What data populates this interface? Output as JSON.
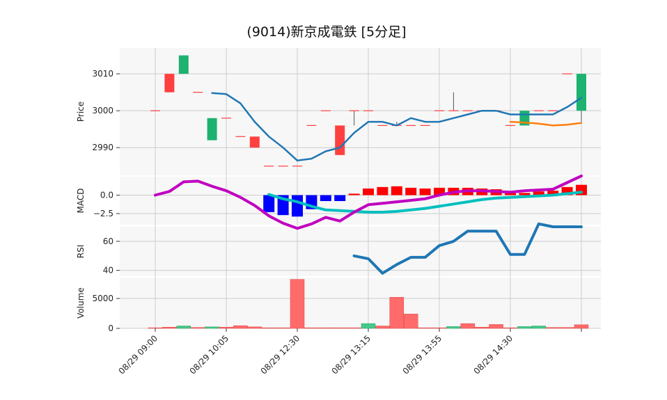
{
  "chart_data": {
    "type": "candlestick",
    "title": "(9014)新京成電鉄  [5分足]",
    "colors": {
      "up": "#1db270",
      "down": "#ff4040",
      "ma_short": "#1f77b4",
      "ma_long": "#ff7f0e",
      "macd_line": "#c000c0",
      "signal_line": "#00bfbf",
      "hist_pos": "#ff0000",
      "hist_neg": "#0000ff",
      "rsi": "#1f77b4",
      "vol_up": "#44c98a",
      "vol_down": "#ff6b6b",
      "panel_bg": "#f7f7f7",
      "grid": "#cccccc"
    },
    "x_ticks": [
      {
        "index": 0,
        "label": "08/29 09:00"
      },
      {
        "index": 5,
        "label": "08/29 10:05"
      },
      {
        "index": 10,
        "label": "08/29 12:30"
      },
      {
        "index": 15,
        "label": "08/29 13:15"
      },
      {
        "index": 20,
        "label": "08/29 13:55"
      },
      {
        "index": 25,
        "label": "08/29 14:30"
      },
      {
        "index": 30,
        "label": ""
      }
    ],
    "price": {
      "ylabel": "Price",
      "ylim": [
        2982.5,
        3017
      ],
      "yticks": [
        2990,
        3000,
        3010
      ],
      "candles": [
        {
          "o": 3000,
          "h": 3000,
          "l": 3000,
          "c": 3000
        },
        {
          "o": 3010,
          "h": 3010,
          "l": 3005,
          "c": 3005
        },
        {
          "o": 3010,
          "h": 3015,
          "l": 3010,
          "c": 3015
        },
        {
          "o": 3005,
          "h": 3005,
          "l": 3005,
          "c": 3005
        },
        {
          "o": 2992,
          "h": 2998,
          "l": 2992,
          "c": 2998
        },
        {
          "o": 2998,
          "h": 2998,
          "l": 2998,
          "c": 2998
        },
        {
          "o": 2993,
          "h": 2993,
          "l": 2993,
          "c": 2993
        },
        {
          "o": 2993,
          "h": 2993,
          "l": 2990,
          "c": 2990
        },
        {
          "o": 2985,
          "h": 2985,
          "l": 2985,
          "c": 2985
        },
        {
          "o": 2985,
          "h": 2985,
          "l": 2985,
          "c": 2985
        },
        {
          "o": 2985,
          "h": 2985,
          "l": 2985,
          "c": 2985
        },
        {
          "o": 2996,
          "h": 2996,
          "l": 2996,
          "c": 2996
        },
        {
          "o": 3000,
          "h": 3000,
          "l": 3000,
          "c": 3000
        },
        {
          "o": 2996,
          "h": 2996,
          "l": 2988,
          "c": 2988
        },
        {
          "o": 3000,
          "h": 3000,
          "l": 2996,
          "c": 3000
        },
        {
          "o": 3000,
          "h": 3000,
          "l": 3000,
          "c": 3000
        },
        {
          "o": 2996,
          "h": 2996,
          "l": 2996,
          "c": 2996
        },
        {
          "o": 2996,
          "h": 2997,
          "l": 2996,
          "c": 2996
        },
        {
          "o": 2996,
          "h": 2996,
          "l": 2996,
          "c": 2996
        },
        {
          "o": 2996,
          "h": 2996,
          "l": 2996,
          "c": 2996
        },
        {
          "o": 3000,
          "h": 3000,
          "l": 3000,
          "c": 3000
        },
        {
          "o": 3000,
          "h": 3005,
          "l": 3000,
          "c": 3000
        },
        {
          "o": 3000,
          "h": 3000,
          "l": 3000,
          "c": 3000
        },
        {
          "o": 3000,
          "h": 3000,
          "l": 3000,
          "c": 3000
        },
        {
          "o": 3000,
          "h": 3000,
          "l": 3000,
          "c": 3000
        },
        {
          "o": 2996,
          "h": 2996,
          "l": 2996,
          "c": 2996
        },
        {
          "o": 2996,
          "h": 3000,
          "l": 2996,
          "c": 3000
        },
        {
          "o": 3000,
          "h": 3000,
          "l": 3000,
          "c": 3000
        },
        {
          "o": 3000,
          "h": 3000,
          "l": 3000,
          "c": 3000
        },
        {
          "o": 3010,
          "h": 3010,
          "l": 3010,
          "c": 3010
        },
        {
          "o": 3000,
          "h": 3010,
          "l": 2997,
          "c": 3010
        }
      ],
      "ma_short": [
        null,
        null,
        null,
        null,
        3004.8,
        3004.5,
        3002,
        2997,
        2993,
        2990,
        2986.5,
        2987,
        2989,
        2990,
        2994,
        2997,
        2997,
        2996,
        2998,
        2997,
        2997,
        2998,
        2999,
        3000,
        3000,
        2999,
        2999,
        2999,
        2999,
        3001,
        3003.5
      ],
      "ma_long": [
        null,
        null,
        null,
        null,
        null,
        null,
        null,
        null,
        null,
        null,
        null,
        null,
        null,
        null,
        null,
        null,
        null,
        null,
        null,
        null,
        null,
        null,
        null,
        null,
        null,
        2997,
        2996.8,
        2996.5,
        2996,
        2996.2,
        2996.7
      ]
    },
    "macd": {
      "ylabel": "MACD",
      "ylim": [
        -4,
        2.5
      ],
      "yticks": [
        -2.5,
        0.0
      ],
      "ytick_labels": [
        "−2.5",
        "0.0"
      ],
      "macd_line": [
        0,
        0.5,
        1.8,
        1.9,
        1.2,
        0.6,
        -0.3,
        -1.4,
        -2.8,
        -3.8,
        -4.5,
        -3.9,
        -3.0,
        -3.5,
        -2.3,
        -1.3,
        -1.1,
        -0.9,
        -0.7,
        -0.5,
        0.0,
        0.4,
        0.6,
        0.6,
        0.5,
        0.4,
        0.6,
        0.7,
        0.8,
        1.7,
        2.6
      ],
      "signal_line": [
        null,
        null,
        null,
        null,
        null,
        null,
        null,
        null,
        0.1,
        -0.5,
        -0.9,
        -1.5,
        -2.0,
        -2.1,
        -2.2,
        -2.3,
        -2.3,
        -2.2,
        -2.0,
        -1.8,
        -1.5,
        -1.2,
        -0.9,
        -0.6,
        -0.4,
        -0.3,
        -0.2,
        -0.1,
        0.0,
        0.2,
        0.4
      ],
      "histogram": [
        null,
        null,
        null,
        null,
        null,
        null,
        null,
        null,
        -2.3,
        -2.7,
        -2.9,
        -1.9,
        -0.8,
        -0.8,
        0.2,
        0.9,
        1.1,
        1.2,
        1.0,
        0.9,
        1.0,
        1.0,
        1.0,
        0.9,
        0.8,
        0.3,
        0.3,
        0.5,
        0.6,
        1.1,
        1.4
      ]
    },
    "rsi": {
      "ylabel": "RSI",
      "ylim": [
        36,
        70
      ],
      "yticks": [
        40,
        60
      ],
      "values": [
        null,
        null,
        null,
        null,
        null,
        null,
        null,
        null,
        null,
        null,
        null,
        null,
        null,
        null,
        50,
        48,
        38,
        44,
        49,
        49,
        57,
        60,
        67,
        67,
        67,
        51,
        51,
        72,
        70,
        70,
        70
      ]
    },
    "volume": {
      "ylabel": "Volume",
      "ylim": [
        0,
        8500
      ],
      "yticks": [
        0,
        5000
      ],
      "values": [
        100,
        200,
        400,
        150,
        250,
        200,
        450,
        250,
        100,
        100,
        8200,
        100,
        100,
        100,
        100,
        800,
        400,
        5200,
        2400,
        100,
        100,
        300,
        800,
        200,
        650,
        100,
        300,
        400,
        150,
        150,
        600
      ],
      "up": [
        false,
        false,
        true,
        false,
        true,
        false,
        false,
        false,
        false,
        false,
        false,
        false,
        false,
        false,
        false,
        true,
        false,
        false,
        false,
        false,
        false,
        true,
        false,
        false,
        false,
        false,
        true,
        true,
        false,
        false,
        false
      ]
    }
  }
}
